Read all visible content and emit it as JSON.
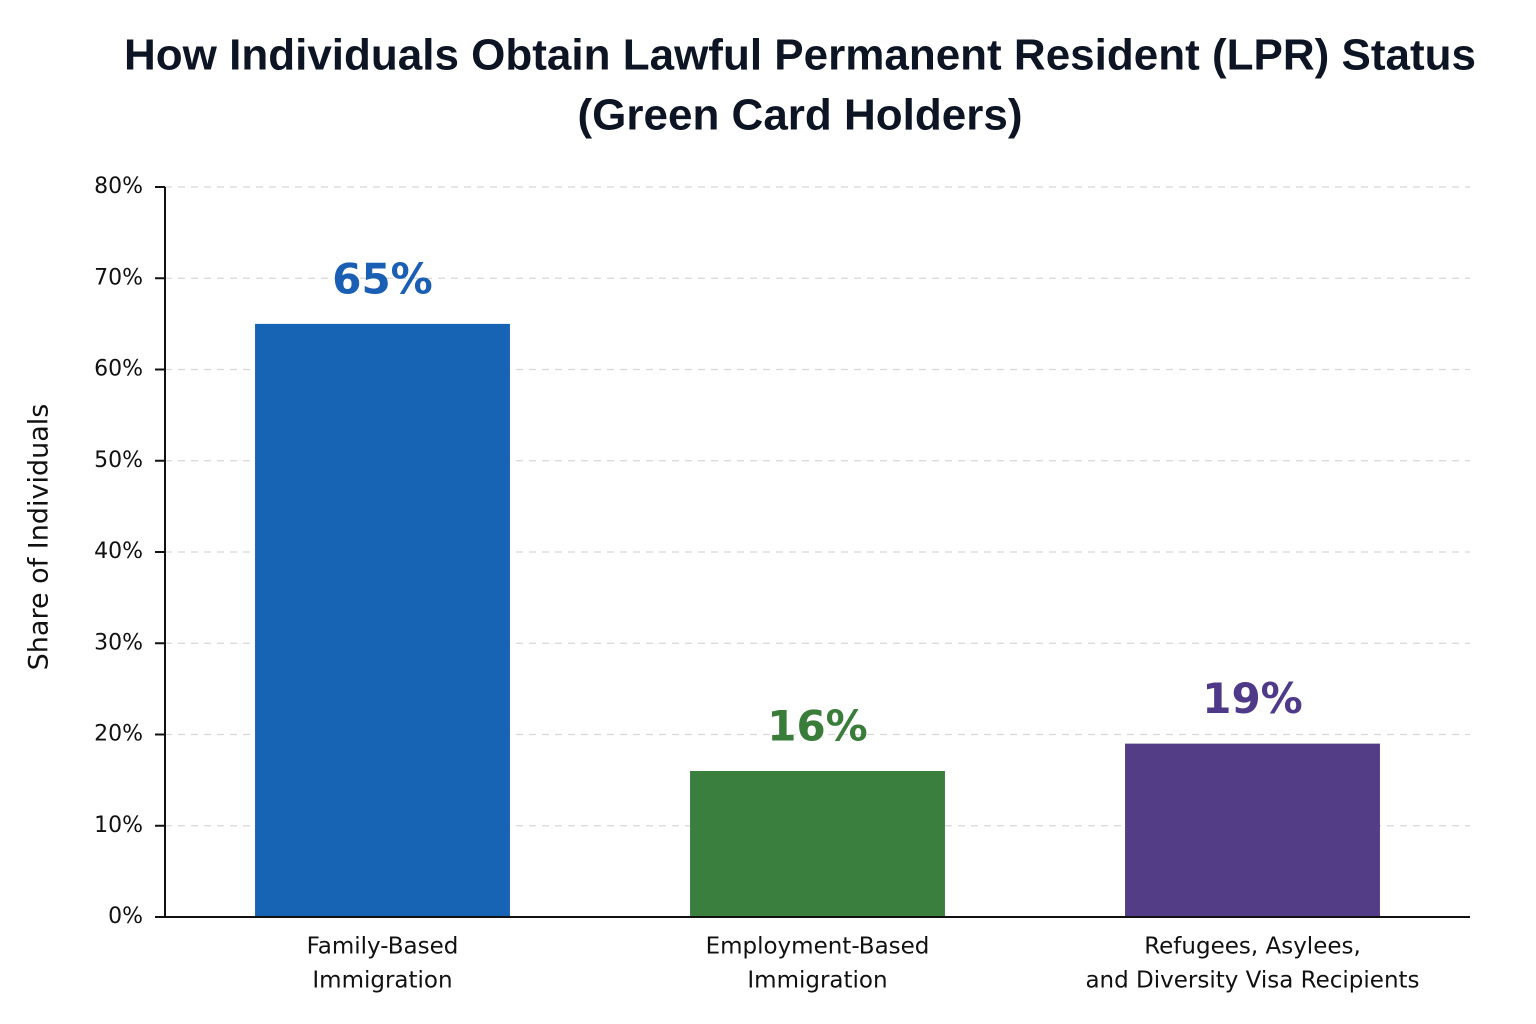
{
  "chart_data": {
    "type": "bar",
    "title": [
      "How Individuals Obtain Lawful Permanent Resident (LPR) Status",
      "(Green Card Holders)"
    ],
    "y_axis_label": "Share of Individuals",
    "categories": [
      [
        "Family-Based",
        "Immigration"
      ],
      [
        "Employment-Based",
        "Immigration"
      ],
      [
        "Refugees, Asylees,",
        "and Diversity Visa Recipients"
      ]
    ],
    "values": [
      65,
      16,
      19
    ],
    "value_labels": [
      "65%",
      "16%",
      "19%"
    ],
    "colors": [
      "#1864b4",
      "#3b7f3e",
      "#533d87"
    ],
    "label_colors": [
      "#1a5fb4",
      "#3a7d3a",
      "#4f3a8a"
    ],
    "ylim": [
      0,
      80
    ],
    "yticks": [
      {
        "value": 0,
        "label": "0%"
      },
      {
        "value": 10,
        "label": "10%"
      },
      {
        "value": 20,
        "label": "20%"
      },
      {
        "value": 30,
        "label": "30%"
      },
      {
        "value": 40,
        "label": "40%"
      },
      {
        "value": 50,
        "label": "50%"
      },
      {
        "value": 60,
        "label": "60%"
      },
      {
        "value": 70,
        "label": "70%"
      },
      {
        "value": 80,
        "label": "80%"
      }
    ],
    "grid": true
  }
}
